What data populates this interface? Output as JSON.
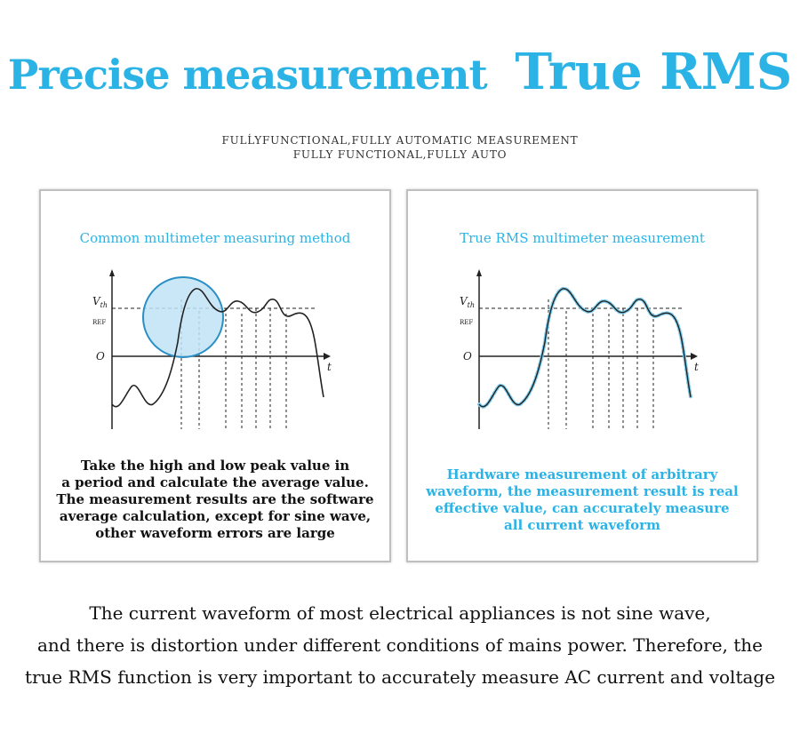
{
  "header": {
    "title_part1": "Precise measurement",
    "title_part2": "True RMS",
    "subtitle_line1": "FULĹYFUNCTIONAL,FULLY AUTOMATIC MEASUREMENT",
    "subtitle_line2": "FULLY FUNCTIONAL,FULLY AUTO"
  },
  "left_panel": {
    "title": "Common multimeter measuring method",
    "graph": {
      "vth_label": "V",
      "vth_sub": "th",
      "ref_label": "REF",
      "origin_label": "O",
      "t_label": "t"
    },
    "text_lines": [
      "Take the high and low peak value in",
      "a period and calculate the average value.",
      "The measurement results are the software",
      "average calculation, except for sine wave,",
      "other waveform errors are large"
    ]
  },
  "right_panel": {
    "title": "True RMS multimeter measurement",
    "graph": {
      "vth_label": "V",
      "vth_sub": "th",
      "ref_label": "REF",
      "origin_label": "O",
      "t_label": "t"
    },
    "text_lines": [
      "Hardware measurement of arbitrary",
      "waveform, the measurement result is real",
      "effective value, can accurately measure",
      "all current waveform"
    ]
  },
  "footer": {
    "lines": [
      "The current waveform of most electrical appliances is not sine wave,",
      "and there is distortion under different conditions of mains power. Therefore, the",
      "true RMS function is very important to accurately measure AC current and voltage"
    ]
  },
  "colors": {
    "accent": "#2bb3e6",
    "circle_fill": "#bfe3f5",
    "text": "#111111"
  }
}
